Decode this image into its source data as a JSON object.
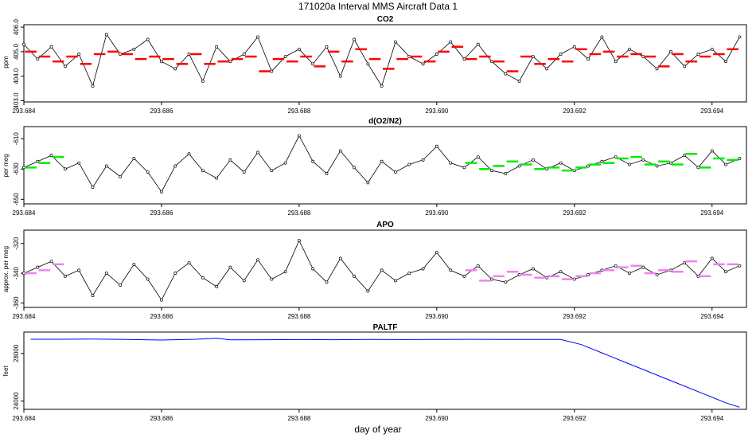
{
  "figure": {
    "title": "171020a   Interval MMS Aircraft Data 1",
    "xlabel": "day of year"
  },
  "colors": {
    "co2_avg": "#ff0000",
    "o2_avg": "#00ee00",
    "apo_avg": "#ee82ee",
    "paltf_line": "#0000ff",
    "points": "#000000"
  },
  "chart_data": [
    {
      "type": "line",
      "name": "co2",
      "title": "CO2",
      "ylabel": "ppm",
      "xlim": [
        293.684,
        293.6945
      ],
      "ylim": [
        402.95,
        406.1
      ],
      "xticks": [
        293.684,
        293.686,
        293.688,
        293.69,
        293.692,
        293.694
      ],
      "xtick_labels": [
        "293.684",
        "293.686",
        "293.688",
        "293.690",
        "293.692",
        "293.694"
      ],
      "yticks": [
        403,
        404,
        405,
        406
      ],
      "ytick_labels": [
        "403.0",
        "404.0",
        "405.0",
        "406.0"
      ],
      "series": [
        {
          "name": "CO2 raw",
          "style": "line-points",
          "x": [
            293.684,
            293.6842,
            293.6844,
            293.6846,
            293.6848,
            293.685,
            293.6852,
            293.6854,
            293.6856,
            293.6858,
            293.686,
            293.6862,
            293.6864,
            293.6866,
            293.6868,
            293.687,
            293.6872,
            293.6874,
            293.6876,
            293.6878,
            293.688,
            293.6882,
            293.6884,
            293.6886,
            293.6888,
            293.689,
            293.6892,
            293.6894,
            293.6896,
            293.6898,
            293.69,
            293.6902,
            293.6904,
            293.6906,
            293.6908,
            293.691,
            293.6912,
            293.6914,
            293.6916,
            293.6918,
            293.692,
            293.6922,
            293.6924,
            293.6926,
            293.6928,
            293.693,
            293.6932,
            293.6934,
            293.6936,
            293.6938,
            293.694,
            293.6942,
            293.6944
          ],
          "y": [
            405.3,
            404.7,
            405.2,
            404.4,
            404.9,
            403.6,
            405.7,
            404.9,
            405.1,
            405.5,
            404.6,
            404.3,
            404.9,
            403.8,
            405.2,
            404.6,
            404.9,
            405.6,
            404.2,
            404.8,
            405.1,
            404.5,
            405.2,
            404.0,
            405.5,
            404.5,
            403.6,
            405.4,
            404.8,
            404.5,
            404.9,
            405.4,
            404.7,
            405.3,
            404.6,
            404.1,
            403.8,
            404.8,
            404.3,
            404.9,
            405.2,
            404.7,
            405.6,
            404.6,
            405.1,
            404.8,
            404.3,
            405.0,
            404.4,
            404.9,
            405.1,
            404.6,
            405.6
          ]
        },
        {
          "name": "CO2 interval averages",
          "style": "segments",
          "x": [
            293.6841,
            293.6843,
            293.6845,
            293.6847,
            293.6849,
            293.6851,
            293.6853,
            293.6855,
            293.6857,
            293.6859,
            293.6861,
            293.6863,
            293.6865,
            293.6867,
            293.6869,
            293.6871,
            293.6873,
            293.6875,
            293.6877,
            293.6879,
            293.6881,
            293.6883,
            293.6885,
            293.6887,
            293.6889,
            293.6891,
            293.6893,
            293.6895,
            293.6897,
            293.6899,
            293.6901,
            293.6903,
            293.6905,
            293.6907,
            293.6909,
            293.6911,
            293.6913,
            293.6915,
            293.6917,
            293.6919,
            293.6921,
            293.6923,
            293.6925,
            293.6927,
            293.6929,
            293.6931,
            293.6933,
            293.6935,
            293.6937,
            293.6939,
            293.6941,
            293.6943
          ],
          "y": [
            405.0,
            404.8,
            404.6,
            404.8,
            404.5,
            404.9,
            405.0,
            404.9,
            404.7,
            404.8,
            404.7,
            404.5,
            404.9,
            404.5,
            404.6,
            404.7,
            404.8,
            404.2,
            404.7,
            404.6,
            404.8,
            404.4,
            405.0,
            404.6,
            405.1,
            404.7,
            404.3,
            404.7,
            404.8,
            404.6,
            405.0,
            405.2,
            404.7,
            404.8,
            404.6,
            404.2,
            404.8,
            404.5,
            404.7,
            404.6,
            405.1,
            404.9,
            405.0,
            404.8,
            404.9,
            404.8,
            404.4,
            404.9,
            404.6,
            404.8,
            404.9,
            405.1
          ]
        }
      ]
    },
    {
      "type": "line",
      "name": "o2",
      "title": "d(O2/N2)",
      "ylabel": "per meg",
      "xlim": [
        293.684,
        293.6945
      ],
      "ylim": [
        -653,
        -602
      ],
      "xticks": [
        293.684,
        293.686,
        293.688,
        293.69,
        293.692,
        293.694
      ],
      "xtick_labels": [
        "293.684",
        "293.686",
        "293.688",
        "293.690",
        "293.692",
        "293.694"
      ],
      "yticks": [
        -610,
        -630,
        -650
      ],
      "ytick_labels": [
        "-610",
        "-630",
        "-650"
      ],
      "series": [
        {
          "name": "d(O2/N2) raw",
          "style": "line-points",
          "x": [
            293.684,
            293.6842,
            293.6844,
            293.6846,
            293.6848,
            293.685,
            293.6852,
            293.6854,
            293.6856,
            293.6858,
            293.686,
            293.6862,
            293.6864,
            293.6866,
            293.6868,
            293.687,
            293.6872,
            293.6874,
            293.6876,
            293.6878,
            293.688,
            293.6882,
            293.6884,
            293.6886,
            293.6888,
            293.689,
            293.6892,
            293.6894,
            293.6896,
            293.6898,
            293.69,
            293.6902,
            293.6904,
            293.6906,
            293.6908,
            293.691,
            293.6912,
            293.6914,
            293.6916,
            293.6918,
            293.692,
            293.6922,
            293.6924,
            293.6926,
            293.6928,
            293.693,
            293.6932,
            293.6934,
            293.6936,
            293.6938,
            293.694,
            293.6942,
            293.6944
          ],
          "y": [
            -629,
            -625,
            -621,
            -630,
            -626,
            -642,
            -628,
            -635,
            -623,
            -632,
            -645,
            -628,
            -620,
            -631,
            -636,
            -624,
            -632,
            -619,
            -631,
            -626,
            -608,
            -625,
            -633,
            -618,
            -629,
            -639,
            -625,
            -632,
            -627,
            -624,
            -615,
            -626,
            -629,
            -622,
            -631,
            -633,
            -628,
            -624,
            -630,
            -626,
            -631,
            -628,
            -625,
            -622,
            -627,
            -624,
            -628,
            -626,
            -621,
            -629,
            -618,
            -627,
            -623
          ]
        },
        {
          "name": "d(O2/N2) interval averages",
          "style": "segments",
          "x": [
            293.6841,
            293.6843,
            293.6845,
            293.6905,
            293.6907,
            293.6909,
            293.6911,
            293.6913,
            293.6915,
            293.6917,
            293.6919,
            293.6921,
            293.6923,
            293.6925,
            293.6927,
            293.6929,
            293.6931,
            293.6933,
            293.6935,
            293.6937,
            293.6939,
            293.6941,
            293.6943
          ],
          "y": [
            -629,
            -626,
            -622,
            -626,
            -630,
            -628,
            -625,
            -627,
            -630,
            -629,
            -631,
            -629,
            -627,
            -626,
            -623,
            -622,
            -627,
            -625,
            -627,
            -620,
            -629,
            -623,
            -624
          ]
        }
      ]
    },
    {
      "type": "line",
      "name": "apo",
      "title": "APO",
      "ylabel": "approx. per meg",
      "xlim": [
        293.684,
        293.6945
      ],
      "ylim": [
        -363,
        -311
      ],
      "xticks": [
        293.684,
        293.686,
        293.688,
        293.69,
        293.692,
        293.694
      ],
      "xtick_labels": [
        "293.684",
        "293.686",
        "293.688",
        "293.690",
        "293.692",
        "293.694"
      ],
      "yticks": [
        -320,
        -340,
        -360
      ],
      "ytick_labels": [
        "-320",
        "-340",
        "-360"
      ],
      "series": [
        {
          "name": "APO raw",
          "style": "line-points",
          "x": [
            293.684,
            293.6842,
            293.6844,
            293.6846,
            293.6848,
            293.685,
            293.6852,
            293.6854,
            293.6856,
            293.6858,
            293.686,
            293.6862,
            293.6864,
            293.6866,
            293.6868,
            293.687,
            293.6872,
            293.6874,
            293.6876,
            293.6878,
            293.688,
            293.6882,
            293.6884,
            293.6886,
            293.6888,
            293.689,
            293.6892,
            293.6894,
            293.6896,
            293.6898,
            293.69,
            293.6902,
            293.6904,
            293.6906,
            293.6908,
            293.691,
            293.6912,
            293.6914,
            293.6916,
            293.6918,
            293.692,
            293.6922,
            293.6924,
            293.6926,
            293.6928,
            293.693,
            293.6932,
            293.6934,
            293.6936,
            293.6938,
            293.694,
            293.6942,
            293.6944
          ],
          "y": [
            -340,
            -336,
            -332,
            -342,
            -338,
            -355,
            -340,
            -348,
            -334,
            -344,
            -358,
            -340,
            -333,
            -343,
            -349,
            -336,
            -345,
            -331,
            -344,
            -339,
            -318,
            -337,
            -346,
            -330,
            -342,
            -352,
            -338,
            -345,
            -340,
            -337,
            -326,
            -338,
            -342,
            -335,
            -344,
            -346,
            -341,
            -337,
            -343,
            -339,
            -344,
            -341,
            -338,
            -335,
            -340,
            -336,
            -341,
            -338,
            -333,
            -342,
            -330,
            -339,
            -335
          ]
        },
        {
          "name": "APO interval averages",
          "style": "segments",
          "x": [
            293.6841,
            293.6843,
            293.6845,
            293.6905,
            293.6907,
            293.6909,
            293.6911,
            293.6913,
            293.6915,
            293.6917,
            293.6919,
            293.6921,
            293.6923,
            293.6925,
            293.6927,
            293.6929,
            293.6931,
            293.6933,
            293.6935,
            293.6937,
            293.6939,
            293.6941,
            293.6943
          ],
          "y": [
            -340,
            -338,
            -334,
            -338,
            -345,
            -342,
            -339,
            -341,
            -343,
            -342,
            -344,
            -342,
            -340,
            -338,
            -336,
            -335,
            -340,
            -338,
            -339,
            -332,
            -342,
            -334,
            -334
          ]
        }
      ]
    },
    {
      "type": "line",
      "name": "paltf",
      "title": "PALTF",
      "ylabel": "feet",
      "xlim": [
        293.684,
        293.6945
      ],
      "ylim": [
        23300,
        29800
      ],
      "xticks": [
        293.684,
        293.686,
        293.688,
        293.69,
        293.692,
        293.694
      ],
      "xtick_labels": [
        "293.684",
        "293.686",
        "293.688",
        "293.690",
        "293.692",
        "293.694"
      ],
      "yticks": [
        24000,
        28000
      ],
      "ytick_labels": [
        "24000",
        "28000"
      ],
      "series": [
        {
          "name": "PALTF",
          "style": "line",
          "x": [
            293.6841,
            293.6845,
            293.685,
            293.6855,
            293.686,
            293.6865,
            293.6868,
            293.687,
            293.6875,
            293.688,
            293.6885,
            293.689,
            293.6895,
            293.69,
            293.6905,
            293.691,
            293.6915,
            293.6918,
            293.6921,
            293.6924,
            293.6927,
            293.693,
            293.6933,
            293.6936,
            293.6939,
            293.6942,
            293.6944
          ],
          "y": [
            29200,
            29200,
            29220,
            29180,
            29130,
            29200,
            29280,
            29150,
            29160,
            29170,
            29160,
            29180,
            29170,
            29180,
            29190,
            29180,
            29180,
            29175,
            28750,
            28050,
            27350,
            26650,
            25950,
            25250,
            24550,
            23850,
            23480
          ]
        }
      ]
    }
  ]
}
